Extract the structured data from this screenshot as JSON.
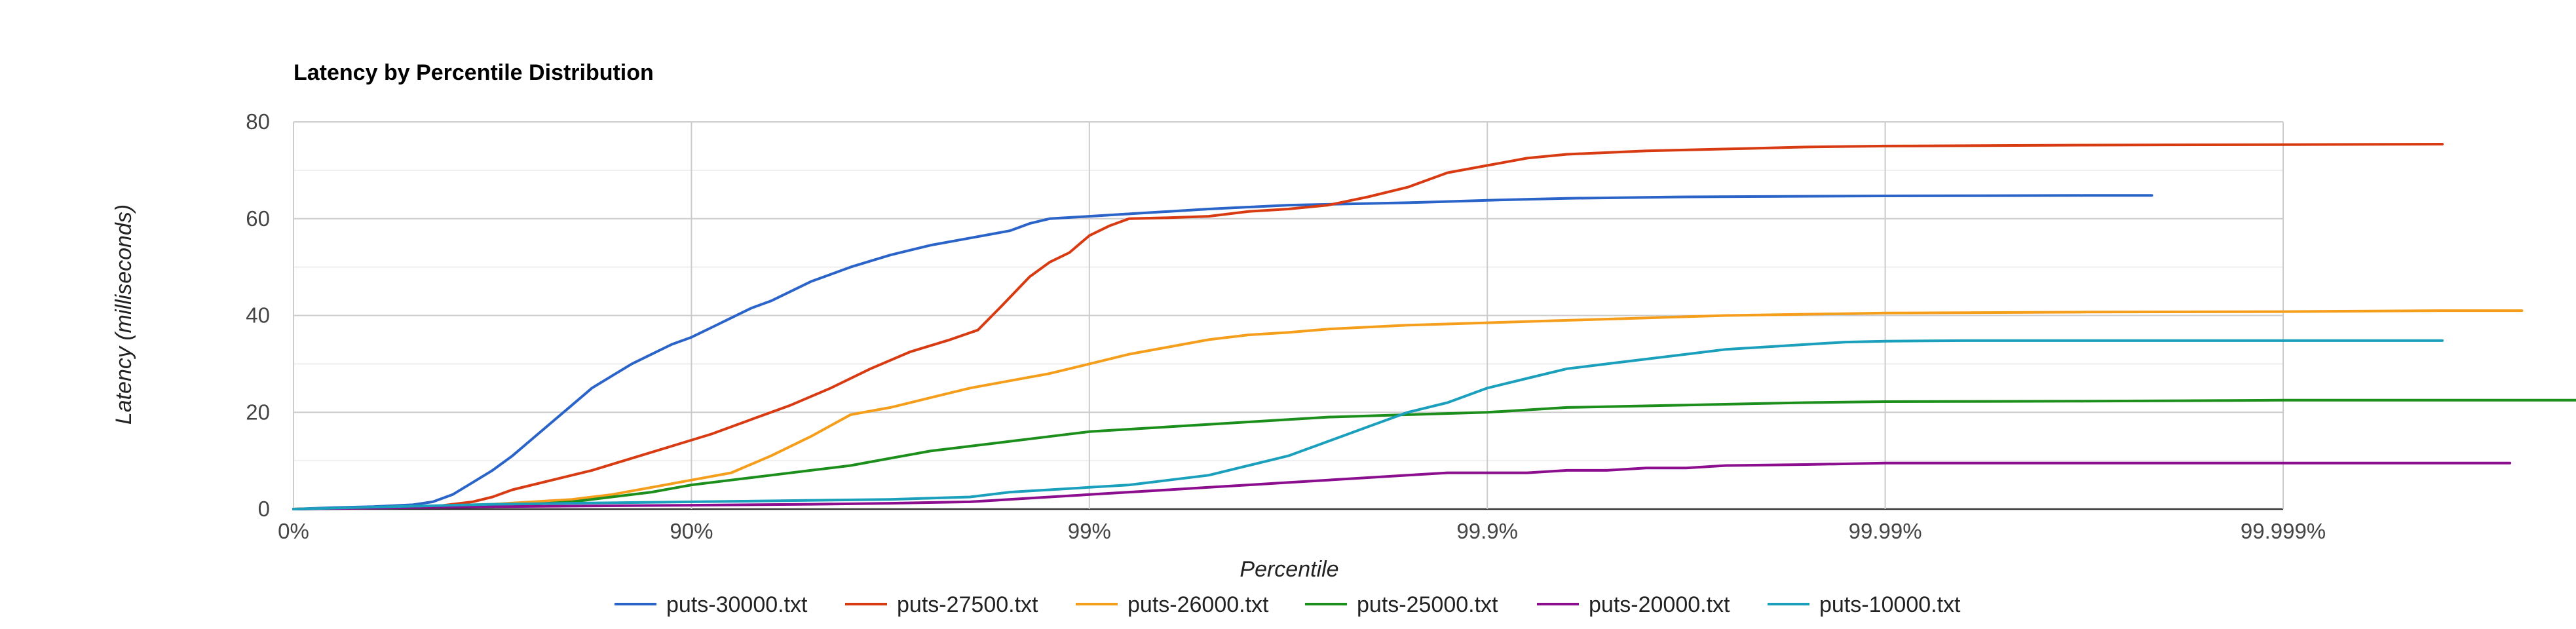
{
  "chart_data": {
    "type": "line",
    "title": "Latency by Percentile Distribution",
    "xlabel": "Percentile",
    "ylabel": "Latency (milliseconds)",
    "x_scale": "log_complement_percentile",
    "x_ticks": [
      "0%",
      "90%",
      "99%",
      "99.9%",
      "99.99%",
      "99.999%"
    ],
    "x_tick_nines": [
      0,
      1,
      2,
      3,
      4,
      5
    ],
    "xlim_nines": [
      0,
      5.75
    ],
    "ylim": [
      0,
      80
    ],
    "y_ticks": [
      0,
      20,
      40,
      60,
      80
    ],
    "grid": true,
    "legend_position": "bottom",
    "series": [
      {
        "name": "puts-30000.txt",
        "color": "#2a64c8",
        "points": [
          [
            0,
            0
          ],
          [
            0.1,
            0.3
          ],
          [
            0.2,
            0.5
          ],
          [
            0.3,
            0.9
          ],
          [
            0.35,
            1.5
          ],
          [
            0.4,
            3
          ],
          [
            0.45,
            5.5
          ],
          [
            0.5,
            8
          ],
          [
            0.55,
            11
          ],
          [
            0.6,
            14.5
          ],
          [
            0.65,
            18
          ],
          [
            0.7,
            21.5
          ],
          [
            0.75,
            25
          ],
          [
            0.8,
            27.5
          ],
          [
            0.85,
            30
          ],
          [
            0.9,
            32
          ],
          [
            0.95,
            34
          ],
          [
            1.0,
            35.5
          ],
          [
            1.05,
            37.5
          ],
          [
            1.1,
            39.5
          ],
          [
            1.15,
            41.5
          ],
          [
            1.2,
            43
          ],
          [
            1.25,
            45
          ],
          [
            1.3,
            47
          ],
          [
            1.35,
            48.5
          ],
          [
            1.4,
            50
          ],
          [
            1.5,
            52.5
          ],
          [
            1.6,
            54.5
          ],
          [
            1.7,
            56
          ],
          [
            1.8,
            57.5
          ],
          [
            1.85,
            59
          ],
          [
            1.9,
            60
          ],
          [
            2.0,
            60.5
          ],
          [
            2.1,
            61
          ],
          [
            2.2,
            61.5
          ],
          [
            2.3,
            62
          ],
          [
            2.5,
            62.8
          ],
          [
            2.8,
            63.3
          ],
          [
            3.0,
            63.8
          ],
          [
            3.2,
            64.2
          ],
          [
            3.5,
            64.5
          ],
          [
            4.0,
            64.7
          ],
          [
            4.5,
            64.8
          ],
          [
            4.67,
            64.8
          ]
        ]
      },
      {
        "name": "puts-27500.txt",
        "color": "#d83a12",
        "points": [
          [
            0,
            0
          ],
          [
            0.2,
            0.3
          ],
          [
            0.35,
            0.5
          ],
          [
            0.45,
            1.5
          ],
          [
            0.5,
            2.5
          ],
          [
            0.55,
            4
          ],
          [
            0.65,
            6
          ],
          [
            0.75,
            8
          ],
          [
            0.85,
            10.5
          ],
          [
            0.95,
            13
          ],
          [
            1.05,
            15.5
          ],
          [
            1.15,
            18.5
          ],
          [
            1.25,
            21.5
          ],
          [
            1.35,
            25
          ],
          [
            1.45,
            29
          ],
          [
            1.55,
            32.5
          ],
          [
            1.65,
            35
          ],
          [
            1.72,
            37
          ],
          [
            1.78,
            42
          ],
          [
            1.85,
            48
          ],
          [
            1.9,
            51
          ],
          [
            1.95,
            53
          ],
          [
            2.0,
            56.5
          ],
          [
            2.05,
            58.5
          ],
          [
            2.1,
            60
          ],
          [
            2.2,
            60.2
          ],
          [
            2.3,
            60.5
          ],
          [
            2.4,
            61.5
          ],
          [
            2.5,
            62
          ],
          [
            2.6,
            62.8
          ],
          [
            2.7,
            64.5
          ],
          [
            2.8,
            66.5
          ],
          [
            2.9,
            69.5
          ],
          [
            3.0,
            71
          ],
          [
            3.1,
            72.5
          ],
          [
            3.2,
            73.3
          ],
          [
            3.4,
            74
          ],
          [
            3.6,
            74.4
          ],
          [
            3.8,
            74.8
          ],
          [
            4.0,
            75
          ],
          [
            4.5,
            75.2
          ],
          [
            5.0,
            75.3
          ],
          [
            5.4,
            75.4
          ]
        ]
      },
      {
        "name": "puts-26000.txt",
        "color": "#f59e1b",
        "points": [
          [
            0,
            0
          ],
          [
            0.3,
            0.5
          ],
          [
            0.5,
            1
          ],
          [
            0.7,
            2
          ],
          [
            0.8,
            3
          ],
          [
            0.9,
            4.5
          ],
          [
            1.0,
            6
          ],
          [
            1.1,
            7.5
          ],
          [
            1.2,
            11
          ],
          [
            1.3,
            15
          ],
          [
            1.4,
            19.5
          ],
          [
            1.5,
            21
          ],
          [
            1.6,
            23
          ],
          [
            1.7,
            25
          ],
          [
            1.8,
            26.5
          ],
          [
            1.9,
            28
          ],
          [
            2.0,
            30
          ],
          [
            2.1,
            32
          ],
          [
            2.2,
            33.5
          ],
          [
            2.3,
            35
          ],
          [
            2.4,
            36
          ],
          [
            2.5,
            36.5
          ],
          [
            2.6,
            37.2
          ],
          [
            2.8,
            38
          ],
          [
            3.0,
            38.5
          ],
          [
            3.2,
            39
          ],
          [
            3.4,
            39.5
          ],
          [
            3.6,
            40
          ],
          [
            4.0,
            40.5
          ],
          [
            4.5,
            40.7
          ],
          [
            5.0,
            40.8
          ],
          [
            5.4,
            41
          ],
          [
            5.6,
            41
          ]
        ]
      },
      {
        "name": "puts-25000.txt",
        "color": "#1b8e1b",
        "points": [
          [
            0,
            0
          ],
          [
            0.5,
            0.5
          ],
          [
            0.6,
            1
          ],
          [
            0.7,
            1.5
          ],
          [
            0.8,
            2.5
          ],
          [
            0.9,
            3.5
          ],
          [
            1.0,
            5
          ],
          [
            1.1,
            6
          ],
          [
            1.2,
            7
          ],
          [
            1.3,
            8
          ],
          [
            1.4,
            9
          ],
          [
            1.5,
            10.5
          ],
          [
            1.6,
            12
          ],
          [
            1.7,
            13
          ],
          [
            1.8,
            14
          ],
          [
            1.9,
            15
          ],
          [
            2.0,
            16
          ],
          [
            2.2,
            17
          ],
          [
            2.4,
            18
          ],
          [
            2.6,
            19
          ],
          [
            2.8,
            19.5
          ],
          [
            3.0,
            20
          ],
          [
            3.2,
            21
          ],
          [
            3.5,
            21.5
          ],
          [
            3.8,
            22
          ],
          [
            4.0,
            22.2
          ],
          [
            4.5,
            22.3
          ],
          [
            5.0,
            22.5
          ],
          [
            5.5,
            22.5
          ],
          [
            5.75,
            22.5
          ]
        ]
      },
      {
        "name": "puts-20000.txt",
        "color": "#8b0e8e",
        "points": [
          [
            0,
            0
          ],
          [
            0.5,
            0.5
          ],
          [
            1.0,
            0.8
          ],
          [
            1.3,
            1
          ],
          [
            1.5,
            1.2
          ],
          [
            1.7,
            1.5
          ],
          [
            1.9,
            2.5
          ],
          [
            2.0,
            3
          ],
          [
            2.1,
            3.5
          ],
          [
            2.2,
            4
          ],
          [
            2.3,
            4.5
          ],
          [
            2.4,
            5
          ],
          [
            2.5,
            5.5
          ],
          [
            2.6,
            6
          ],
          [
            2.7,
            6.5
          ],
          [
            2.8,
            7
          ],
          [
            2.9,
            7.5
          ],
          [
            3.0,
            7.5
          ],
          [
            3.1,
            7.5
          ],
          [
            3.2,
            8
          ],
          [
            3.3,
            8
          ],
          [
            3.4,
            8.5
          ],
          [
            3.5,
            8.5
          ],
          [
            3.6,
            9
          ],
          [
            3.8,
            9.2
          ],
          [
            4.0,
            9.5
          ],
          [
            4.5,
            9.5
          ],
          [
            5.0,
            9.5
          ],
          [
            5.5,
            9.5
          ],
          [
            5.57,
            9.5
          ]
        ]
      },
      {
        "name": "puts-10000.txt",
        "color": "#1a9fbd",
        "points": [
          [
            0,
            0
          ],
          [
            0.5,
            1
          ],
          [
            1.0,
            1.5
          ],
          [
            1.5,
            2
          ],
          [
            1.7,
            2.5
          ],
          [
            1.8,
            3.5
          ],
          [
            1.9,
            4
          ],
          [
            2.0,
            4.5
          ],
          [
            2.1,
            5
          ],
          [
            2.2,
            6
          ],
          [
            2.3,
            7
          ],
          [
            2.4,
            9
          ],
          [
            2.5,
            11
          ],
          [
            2.6,
            14
          ],
          [
            2.7,
            17
          ],
          [
            2.8,
            20
          ],
          [
            2.9,
            22
          ],
          [
            3.0,
            25
          ],
          [
            3.1,
            27
          ],
          [
            3.2,
            29
          ],
          [
            3.3,
            30
          ],
          [
            3.4,
            31
          ],
          [
            3.5,
            32
          ],
          [
            3.6,
            33
          ],
          [
            3.7,
            33.5
          ],
          [
            3.8,
            34
          ],
          [
            3.9,
            34.5
          ],
          [
            4.0,
            34.7
          ],
          [
            4.2,
            34.8
          ],
          [
            4.5,
            34.8
          ],
          [
            5.0,
            34.8
          ],
          [
            5.4,
            34.8
          ]
        ]
      }
    ]
  }
}
